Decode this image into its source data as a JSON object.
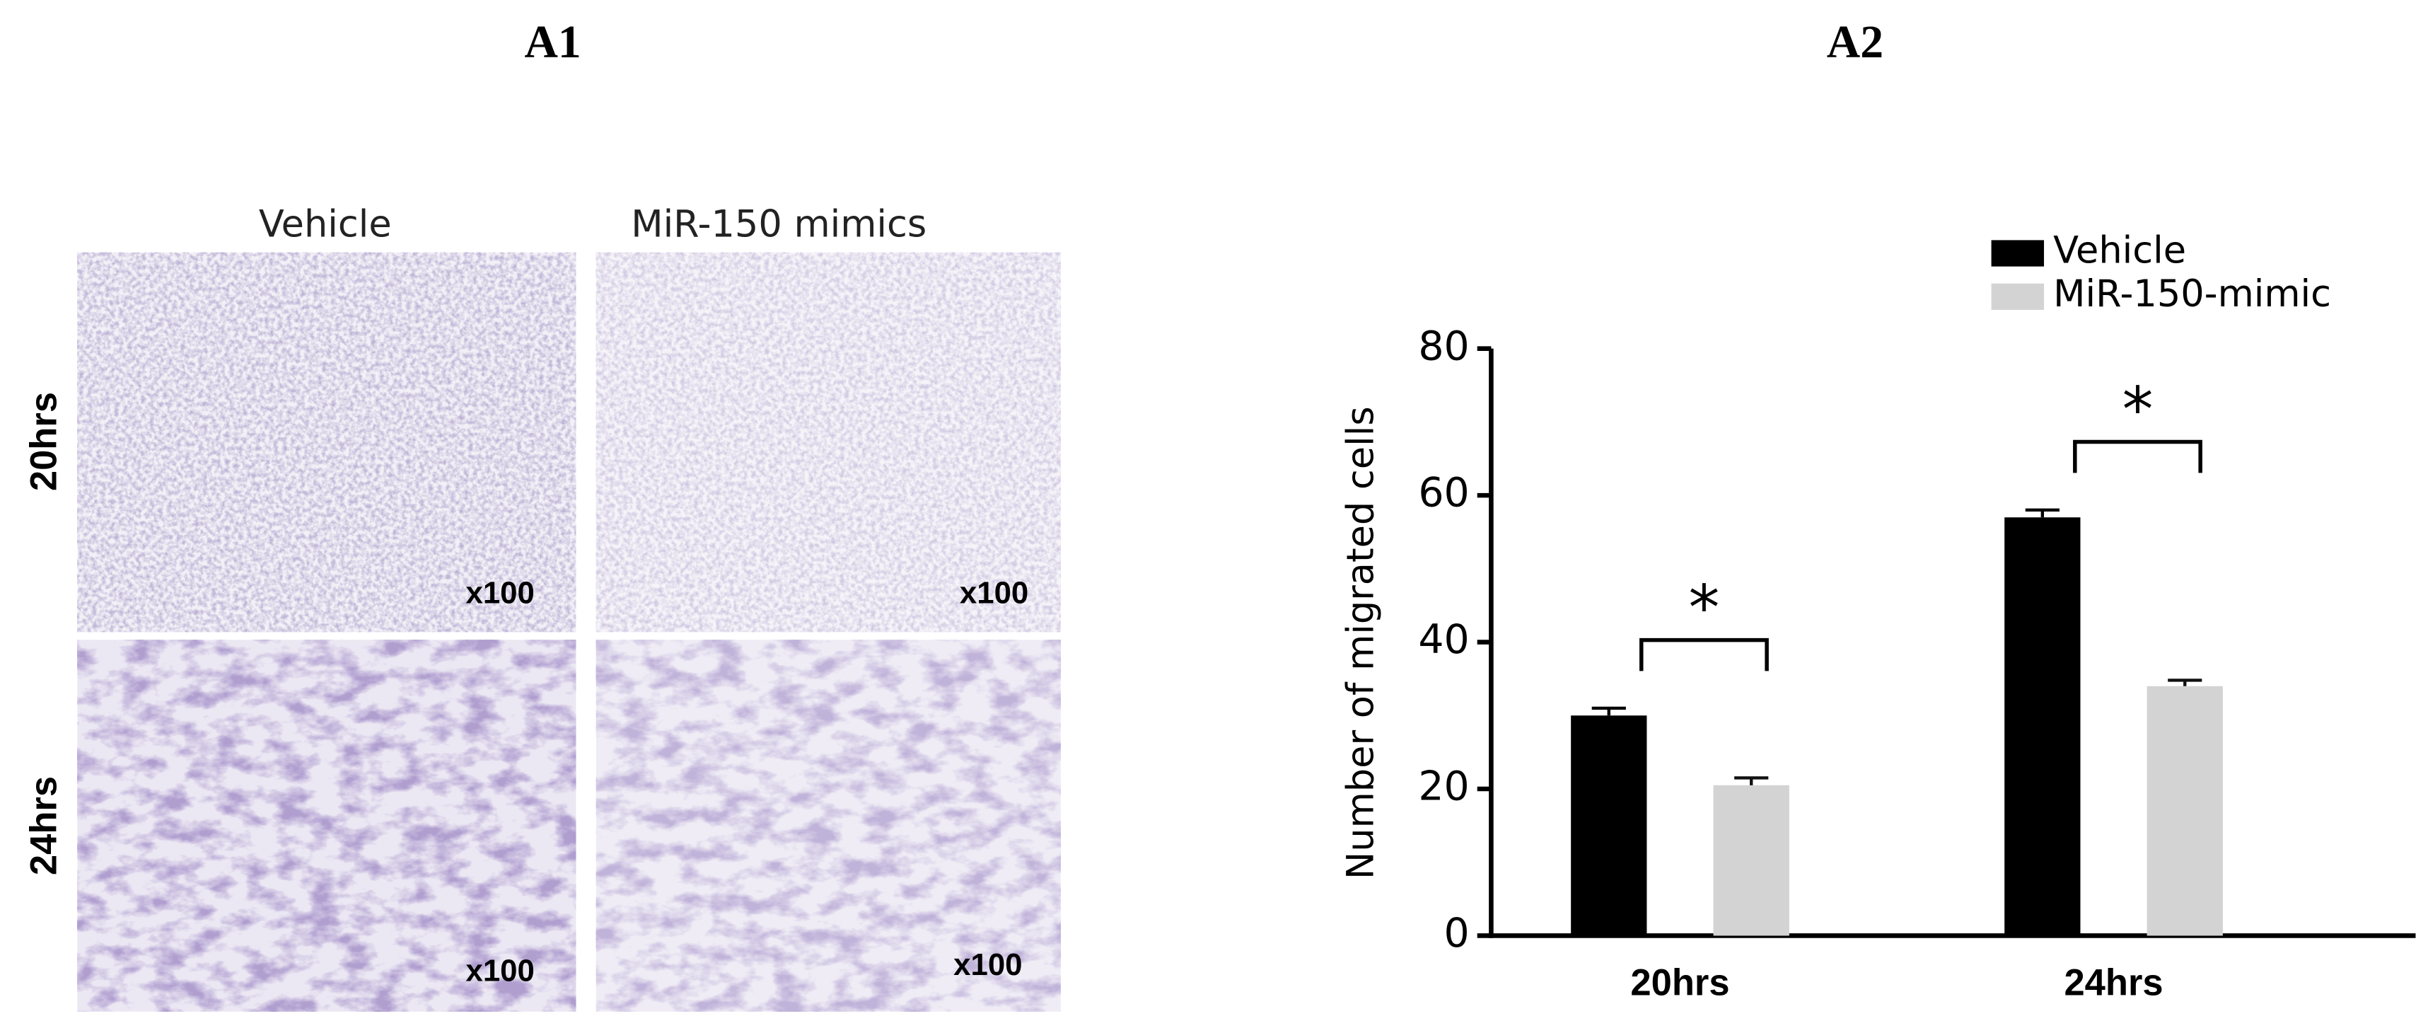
{
  "panels": {
    "a1": {
      "label": "A1",
      "columns": [
        "Vehicle",
        "MiR-150 mimics"
      ],
      "rows": [
        "20hrs",
        "24hrs"
      ],
      "magnifications": [
        "x100",
        "x100",
        "x100",
        "x100"
      ]
    }
  },
  "chart_data": {
    "type": "bar",
    "label": "A2",
    "y_label": "Number of migrated cells",
    "categories": [
      "20hrs",
      "24hrs"
    ],
    "series": [
      {
        "name": "Vehicle",
        "color": "#000000",
        "values": [
          30,
          57
        ],
        "errors": [
          1,
          1
        ]
      },
      {
        "name": "MiR-150-mimic",
        "color": "#d3d3d3",
        "values": [
          20.5,
          34
        ],
        "errors": [
          1,
          0.8
        ]
      }
    ],
    "annotations": [
      "*",
      "*"
    ],
    "ylim": [
      0,
      80
    ],
    "yticks": [
      0,
      20,
      40,
      60,
      80
    ],
    "legend": "top-right"
  }
}
